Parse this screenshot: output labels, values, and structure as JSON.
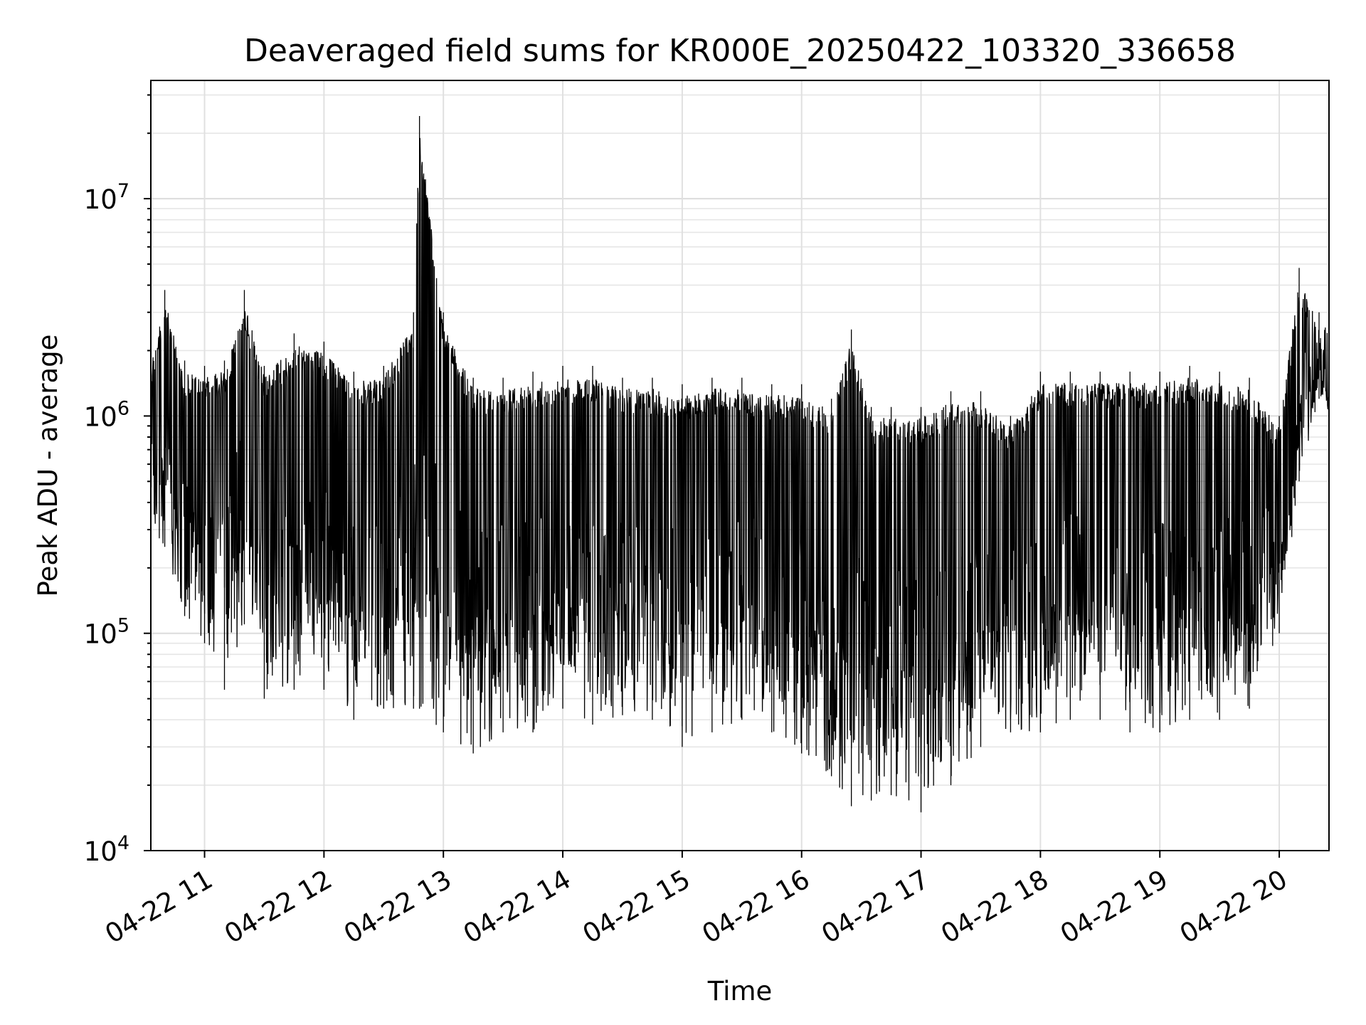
{
  "chart_data": {
    "type": "line",
    "title": "Deaveraged field sums for KR000E_20250422_103320_336658",
    "xlabel": "Time",
    "ylabel": "Peak ADU - average",
    "yscale": "log",
    "ylim": [
      10000,
      35000000
    ],
    "xlim": [
      "04-22 10:33",
      "04-22 20:25"
    ],
    "grid": true,
    "legend": "none",
    "line_color": "#000000",
    "x_ticks": [
      "04-22 11",
      "04-22 12",
      "04-22 13",
      "04-22 14",
      "04-22 15",
      "04-22 16",
      "04-22 17",
      "04-22 18",
      "04-22 19",
      "04-22 20"
    ],
    "y_ticks": [
      {
        "base": "10",
        "exp": "4"
      },
      {
        "base": "10",
        "exp": "5"
      },
      {
        "base": "10",
        "exp": "6"
      },
      {
        "base": "10",
        "exp": "7"
      }
    ],
    "series": [
      {
        "x": [
          "04-22 10:33",
          "04-22 10:40",
          "04-22 10:50",
          "04-22 11:00",
          "04-22 11:10",
          "04-22 11:20",
          "04-22 11:30",
          "04-22 11:45",
          "04-22 12:00",
          "04-22 12:15",
          "04-22 12:30",
          "04-22 12:45",
          "04-22 12:48",
          "04-22 13:00",
          "04-22 13:15",
          "04-22 13:30",
          "04-22 13:45",
          "04-22 14:00",
          "04-22 14:15",
          "04-22 14:30",
          "04-22 14:45",
          "04-22 15:00",
          "04-22 15:15",
          "04-22 15:30",
          "04-22 15:45",
          "04-22 16:00",
          "04-22 16:15",
          "04-22 16:25",
          "04-22 16:35",
          "04-22 16:45",
          "04-22 17:00",
          "04-22 17:15",
          "04-22 17:30",
          "04-22 17:45",
          "04-22 18:00",
          "04-22 18:15",
          "04-22 18:30",
          "04-22 18:45",
          "04-22 19:00",
          "04-22 19:15",
          "04-22 19:30",
          "04-22 19:45",
          "04-22 20:00",
          "04-22 20:10",
          "04-22 20:20",
          "04-22 20:25"
        ],
        "y_high": [
          2000000,
          3800000,
          1800000,
          1700000,
          1800000,
          3800000,
          1700000,
          2400000,
          2200000,
          1600000,
          1700000,
          3000000,
          24000000,
          3000000,
          1500000,
          1500000,
          1600000,
          1700000,
          1700000,
          1500000,
          1500000,
          1400000,
          1500000,
          1500000,
          1400000,
          1400000,
          1200000,
          2500000,
          1100000,
          1100000,
          1100000,
          1300000,
          1300000,
          1000000,
          1600000,
          1600000,
          1600000,
          1600000,
          1600000,
          1700000,
          1600000,
          1500000,
          1000000,
          4800000,
          3000000,
          2800000
        ],
        "y_low": [
          300000,
          250000,
          120000,
          90000,
          55000,
          110000,
          50000,
          55000,
          55000,
          40000,
          45000,
          45000,
          45000,
          35000,
          28000,
          35000,
          35000,
          45000,
          38000,
          42000,
          40000,
          30000,
          35000,
          40000,
          35000,
          28000,
          22000,
          16000,
          17000,
          18000,
          15000,
          20000,
          30000,
          35000,
          35000,
          40000,
          40000,
          35000,
          35000,
          40000,
          40000,
          45000,
          100000,
          500000,
          1200000,
          1000000
        ]
      }
    ]
  }
}
